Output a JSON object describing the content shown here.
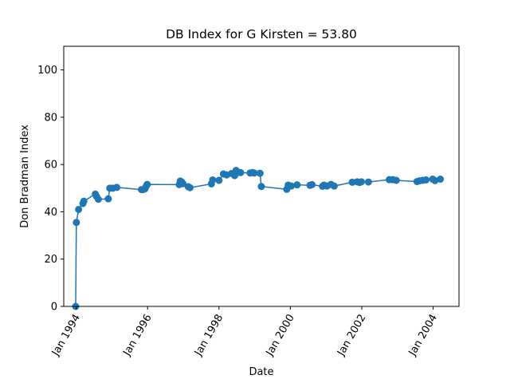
{
  "chart_data": {
    "type": "line",
    "title": "DB Index for G Kirsten = 53.80",
    "xlabel": "Date",
    "ylabel": "Don Bradman Index",
    "ylim": [
      0,
      110
    ],
    "xlim": [
      "1993-08-26",
      "2004-09-22"
    ],
    "yticks": [
      0,
      20,
      40,
      60,
      80,
      100
    ],
    "xticks": [
      {
        "value": "1994-01-01",
        "label": "Jan 1994"
      },
      {
        "value": "1996-01-01",
        "label": "Jan 1996"
      },
      {
        "value": "1998-01-01",
        "label": "Jan 1998"
      },
      {
        "value": "2000-01-01",
        "label": "Jan 2000"
      },
      {
        "value": "2002-01-01",
        "label": "Jan 2002"
      },
      {
        "value": "2004-01-01",
        "label": "Jan 2004"
      }
    ],
    "grid": false,
    "marker": "circle",
    "line_color": "#1f77b4",
    "series": [
      {
        "x": [
          "1993-12-26",
          "1994-01-02",
          "1994-01-25",
          "1994-03-10",
          "1994-03-20",
          "1994-07-15",
          "1994-07-28",
          "1994-08-15",
          "1994-11-25",
          "1994-12-10",
          "1995-01-10",
          "1995-02-20",
          "1995-10-30",
          "1995-11-15",
          "1995-12-05",
          "1995-12-15",
          "1995-12-28",
          "1996-11-20",
          "1996-11-30",
          "1996-12-15",
          "1996-12-28",
          "1997-02-20",
          "1997-03-10",
          "1997-10-15",
          "1997-10-28",
          "1998-01-01",
          "1998-02-15",
          "1998-03-20",
          "1998-05-10",
          "1998-06-10",
          "1998-06-25",
          "1998-07-15",
          "1998-08-10",
          "1998-11-15",
          "1998-12-10",
          "1998-12-28",
          "1999-02-25",
          "1999-03-10",
          "1999-11-25",
          "1999-12-10",
          "2000-01-10",
          "2000-03-10",
          "2000-07-20",
          "2000-08-10",
          "2000-11-25",
          "2000-12-10",
          "2001-01-10",
          "2001-02-20",
          "2001-03-25",
          "2001-09-25",
          "2001-11-15",
          "2001-12-10",
          "2001-12-28",
          "2002-03-10",
          "2002-10-10",
          "2002-11-15",
          "2002-12-20",
          "2003-07-20",
          "2003-08-15",
          "2003-09-15",
          "2003-10-20",
          "2003-12-28",
          "2004-01-20",
          "2004-03-15"
        ],
        "y": [
          0,
          35.5,
          41,
          43.5,
          44.5,
          47.5,
          46.5,
          45.3,
          45.5,
          50,
          50,
          50.3,
          49.4,
          49.4,
          49.7,
          50.6,
          51.6,
          51.5,
          53,
          52.6,
          51.9,
          50.6,
          50.2,
          51.8,
          53.5,
          53.3,
          56,
          55.6,
          56.2,
          55.3,
          57.5,
          56.7,
          56.6,
          56.4,
          56.6,
          56.4,
          56.3,
          50.7,
          49.5,
          51.3,
          50.9,
          51.4,
          51.2,
          51.5,
          50.8,
          51.3,
          50.9,
          51.6,
          50.9,
          52.5,
          52.7,
          52.4,
          52.7,
          52.6,
          53.6,
          53.6,
          53.3,
          52.8,
          53.1,
          53.3,
          53.5,
          53.8,
          53.2,
          53.8
        ]
      }
    ]
  }
}
